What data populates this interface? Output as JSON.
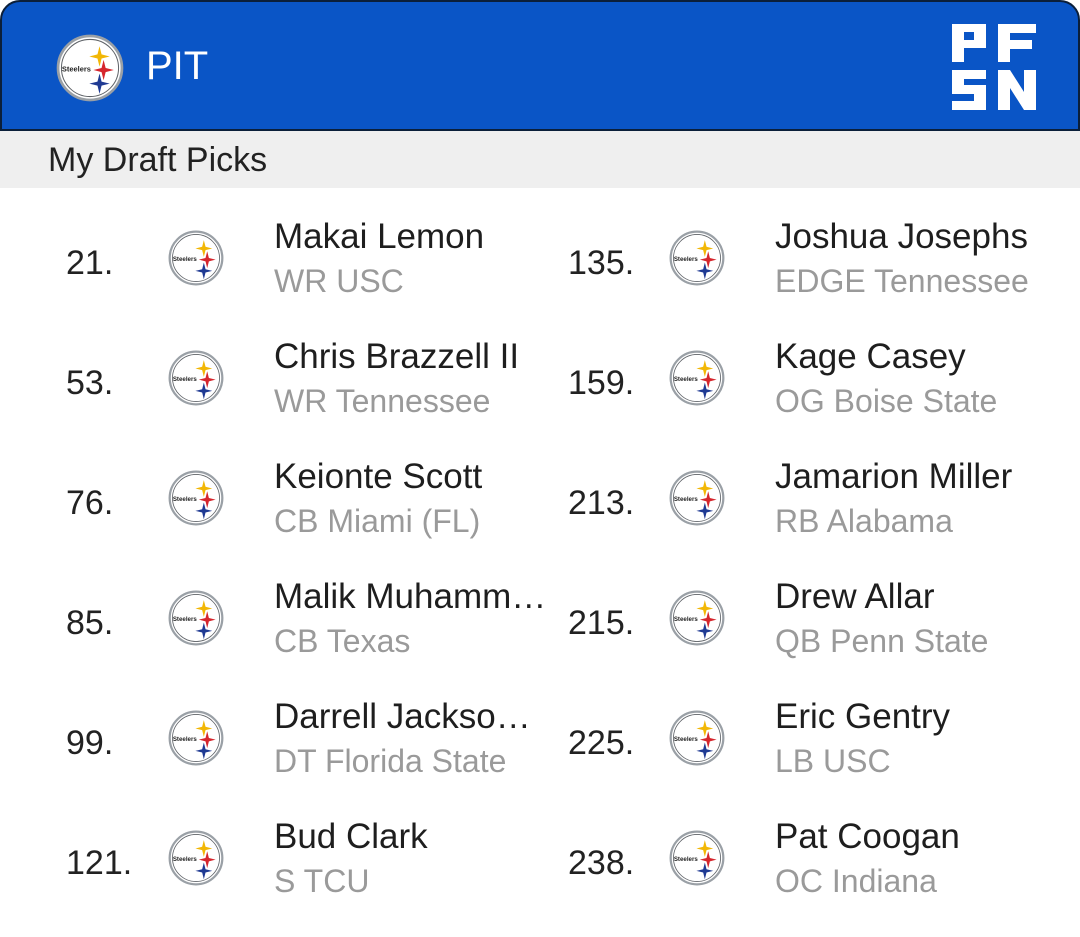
{
  "header": {
    "team_abbr": "PIT",
    "team_logo_icon": "steelers-logo-icon",
    "team_logo_text": "Steelers",
    "brand_logo_icon": "pfsn-logo-icon",
    "brand_logo_text": "PFSN",
    "background_color": "#0a55c6"
  },
  "section": {
    "title": "My Draft Picks"
  },
  "picks_left": [
    {
      "number": "21.",
      "name": "Makai Lemon",
      "info": "WR USC"
    },
    {
      "number": "53.",
      "name": "Chris Brazzell II",
      "info": "WR Tennessee"
    },
    {
      "number": "76.",
      "name": "Keionte Scott",
      "info": "CB Miami (FL)"
    },
    {
      "number": "85.",
      "name": "Malik Muhammad",
      "info": "CB Texas"
    },
    {
      "number": "99.",
      "name": "Darrell Jackson Jr.",
      "info": "DT Florida State"
    },
    {
      "number": "121.",
      "name": "Bud Clark",
      "info": "S TCU"
    }
  ],
  "picks_right": [
    {
      "number": "135.",
      "name": "Joshua Josephs",
      "info": "EDGE Tennessee"
    },
    {
      "number": "159.",
      "name": "Kage Casey",
      "info": "OG Boise State"
    },
    {
      "number": "213.",
      "name": "Jamarion Miller",
      "info": "RB Alabama"
    },
    {
      "number": "215.",
      "name": "Drew Allar",
      "info": "QB Penn State"
    },
    {
      "number": "225.",
      "name": "Eric Gentry",
      "info": "LB USC"
    },
    {
      "number": "238.",
      "name": "Pat Coogan",
      "info": "OC Indiana"
    }
  ]
}
